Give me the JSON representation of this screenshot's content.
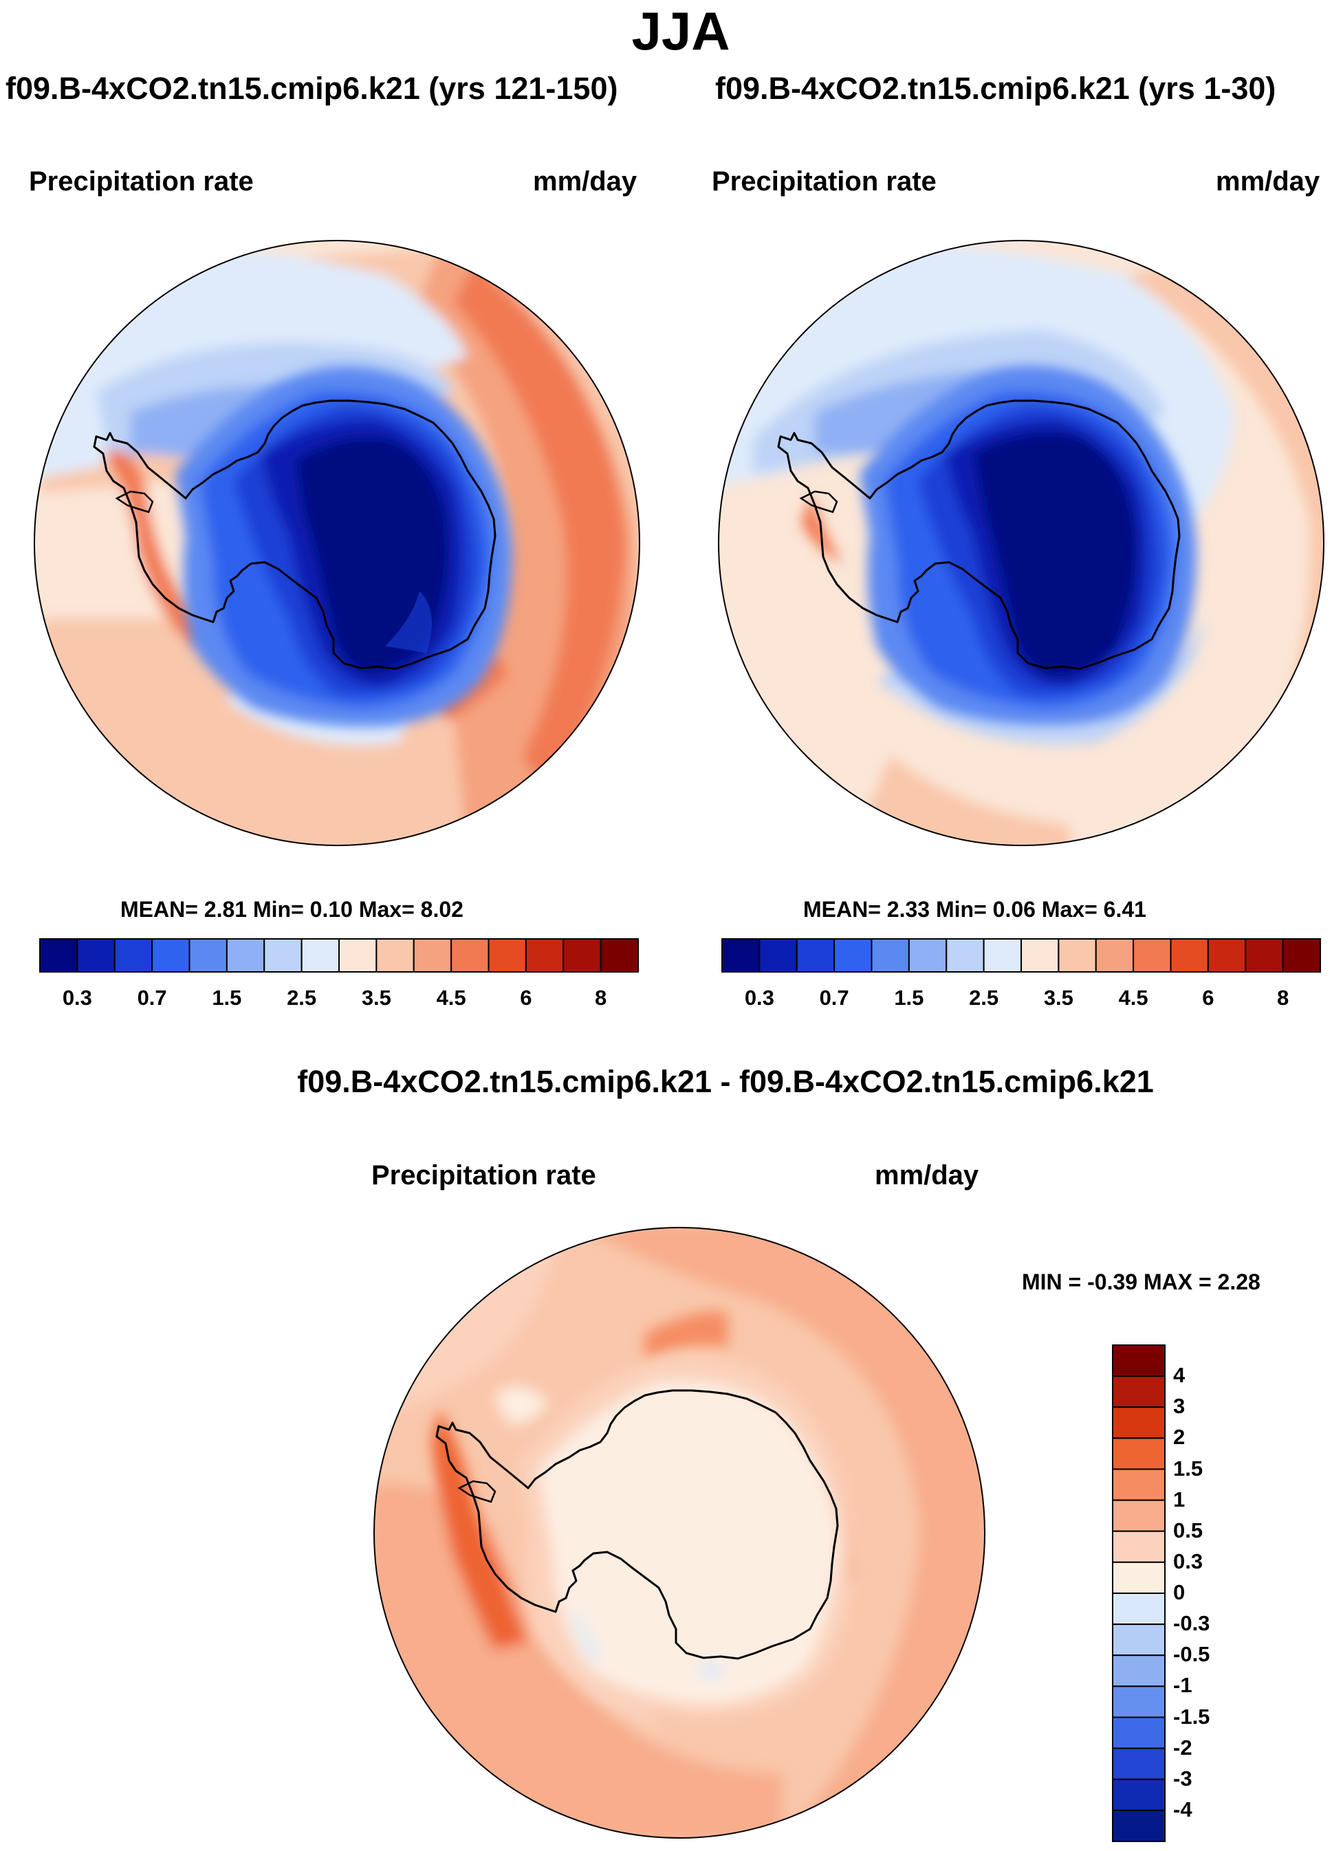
{
  "main_title": "JJA",
  "palette": [
    "#000780",
    "#0a1fb0",
    "#1b3fd6",
    "#2f62ee",
    "#5b89f2",
    "#8fb0f4",
    "#bdd3f7",
    "#dfebfb",
    "#fbe6d7",
    "#f9c7ab",
    "#f5a27f",
    "#f17a52",
    "#e54c22",
    "#c8280f",
    "#a41008",
    "#7a0000"
  ],
  "panels": [
    {
      "title": "f09.B-4xCO2.tn15.cmip6.k21 (yrs 121-150)",
      "variable": "Precipitation rate",
      "units": "mm/day",
      "stats": "MEAN=  2.81  Min=  0.10  Max=  8.02",
      "colorbar_ticks": [
        "0.3",
        "0.7",
        "1.5",
        "2.5",
        "3.5",
        "4.5",
        "6",
        "8"
      ]
    },
    {
      "title": "f09.B-4xCO2.tn15.cmip6.k21 (yrs 1-30)",
      "variable": "Precipitation rate",
      "units": "mm/day",
      "stats": "MEAN=  2.33  Min=  0.06  Max=  6.41",
      "colorbar_ticks": [
        "0.3",
        "0.7",
        "1.5",
        "2.5",
        "3.5",
        "4.5",
        "6",
        "8"
      ]
    }
  ],
  "diff_panel": {
    "title": "f09.B-4xCO2.tn15.cmip6.k21 - f09.B-4xCO2.tn15.cmip6.k21",
    "variable": "Precipitation rate",
    "units": "mm/day",
    "stats": "MIN =  -0.39 MAX =   2.28",
    "colorbar_ticks": [
      "4",
      "3",
      "2",
      "1.5",
      "1",
      "0.5",
      "0.3",
      "0",
      "-0.3",
      "-0.5",
      "-1",
      "-1.5",
      "-2",
      "-3",
      "-4"
    ],
    "colorbar_colors": [
      "#7a0000",
      "#b01a0a",
      "#d8380f",
      "#ee6433",
      "#f58c62",
      "#f8ad8c",
      "#fbd2bc",
      "#fdeee2",
      "#d9e9fb",
      "#b4cdf7",
      "#8eb0f3",
      "#6590ef",
      "#3d6ae8",
      "#2347d4",
      "#0f2bb4",
      "#041a8a"
    ]
  }
}
